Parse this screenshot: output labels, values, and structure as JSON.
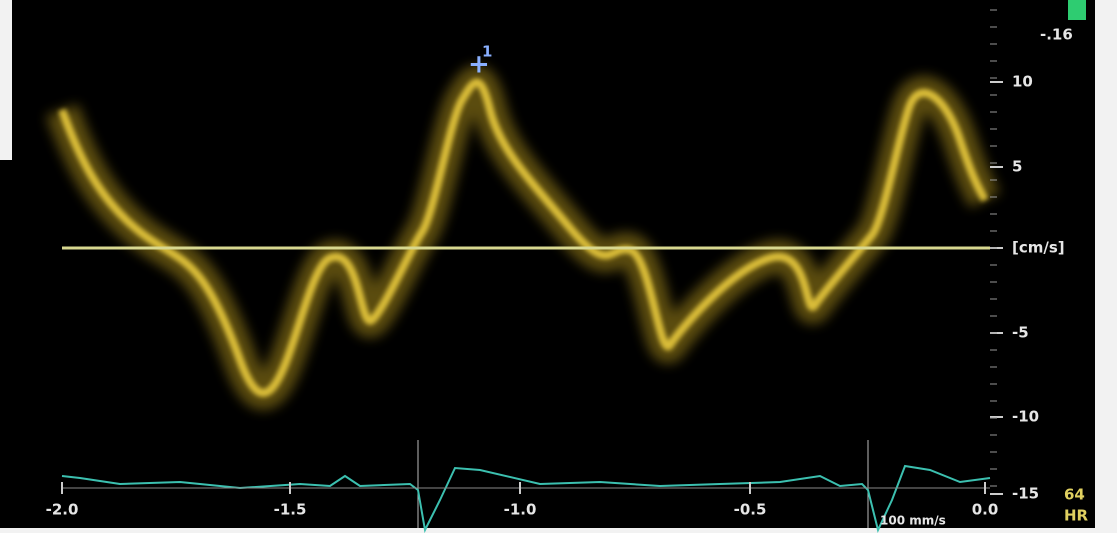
{
  "scale": {
    "top_label": "-.16",
    "y_ticks": [
      "10",
      "5",
      "[cm/s]",
      "-5",
      "-10",
      "-15"
    ],
    "x_ticks": [
      "-2.0",
      "-1.5",
      "-1.0",
      "-0.5",
      "0.0"
    ]
  },
  "cursor_label": "1",
  "heart_rate": {
    "value": "64",
    "label": "HR"
  },
  "sweep_speed": "100 mm/s"
}
